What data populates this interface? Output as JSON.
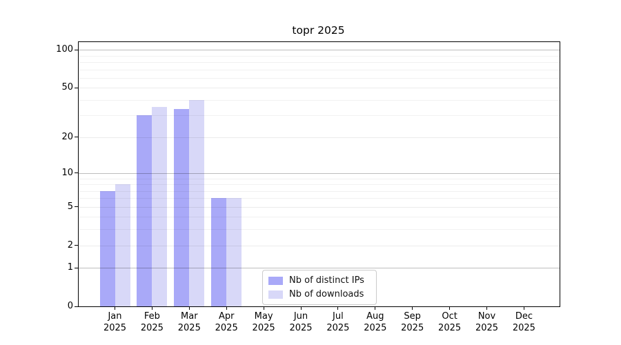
{
  "chart_data": {
    "type": "bar",
    "title": "topr 2025",
    "categories": [
      "Jan 2025",
      "Feb 2025",
      "Mar 2025",
      "Apr 2025",
      "May 2025",
      "Jun 2025",
      "Jul 2025",
      "Aug 2025",
      "Sep 2025",
      "Oct 2025",
      "Nov 2025",
      "Dec 2025"
    ],
    "series": [
      {
        "name": "Nb of distinct IPs",
        "color": "#a9a9f8",
        "values": [
          7,
          30,
          34,
          6,
          0,
          0,
          0,
          0,
          0,
          0,
          0,
          0
        ]
      },
      {
        "name": "Nb of downloads",
        "color": "#d8d8f8",
        "values": [
          8,
          35,
          40,
          6,
          0,
          0,
          0,
          0,
          0,
          0,
          0,
          0
        ]
      }
    ],
    "xlabel": "",
    "ylabel": "",
    "yticks": [
      0,
      1,
      2,
      5,
      10,
      20,
      50,
      100
    ],
    "ylim": [
      0,
      115
    ],
    "yscale": "log-like (log(value+1))",
    "grid": true,
    "gridlines": {
      "major": [
        1,
        10,
        100
      ],
      "mid": [
        2,
        5,
        20,
        50
      ],
      "minor": [
        3,
        4,
        6,
        7,
        8,
        9,
        30,
        40,
        60,
        70,
        80,
        90
      ]
    },
    "legend_position": "lower center"
  }
}
